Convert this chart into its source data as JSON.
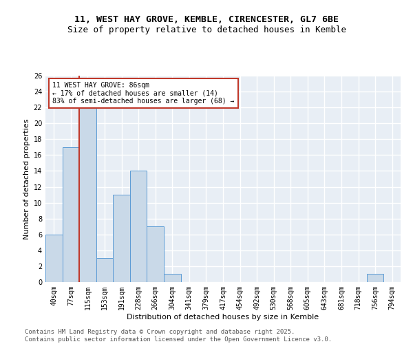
{
  "title1": "11, WEST HAY GROVE, KEMBLE, CIRENCESTER, GL7 6BE",
  "title2": "Size of property relative to detached houses in Kemble",
  "xlabel": "Distribution of detached houses by size in Kemble",
  "ylabel": "Number of detached properties",
  "bins": [
    "40sqm",
    "77sqm",
    "115sqm",
    "153sqm",
    "191sqm",
    "228sqm",
    "266sqm",
    "304sqm",
    "341sqm",
    "379sqm",
    "417sqm",
    "454sqm",
    "492sqm",
    "530sqm",
    "568sqm",
    "605sqm",
    "643sqm",
    "681sqm",
    "718sqm",
    "756sqm",
    "794sqm"
  ],
  "values": [
    6,
    17,
    22,
    3,
    11,
    14,
    7,
    1,
    0,
    0,
    0,
    0,
    0,
    0,
    0,
    0,
    0,
    0,
    0,
    1,
    0
  ],
  "bar_color": "#c9d9e8",
  "bar_edge_color": "#5b9bd5",
  "highlight_edge_color": "#c0392b",
  "annotation_text": "11 WEST HAY GROVE: 86sqm\n← 17% of detached houses are smaller (14)\n83% of semi-detached houses are larger (68) →",
  "annotation_box_color": "white",
  "annotation_box_edge_color": "#c0392b",
  "ylim": [
    0,
    26
  ],
  "yticks": [
    0,
    2,
    4,
    6,
    8,
    10,
    12,
    14,
    16,
    18,
    20,
    22,
    24,
    26
  ],
  "background_color": "#e8eef5",
  "grid_color": "white",
  "footer_text": "Contains HM Land Registry data © Crown copyright and database right 2025.\nContains public sector information licensed under the Open Government Licence v3.0.",
  "title_fontsize": 9.5,
  "subtitle_fontsize": 9,
  "axis_label_fontsize": 8,
  "tick_fontsize": 7,
  "footer_fontsize": 6.5
}
